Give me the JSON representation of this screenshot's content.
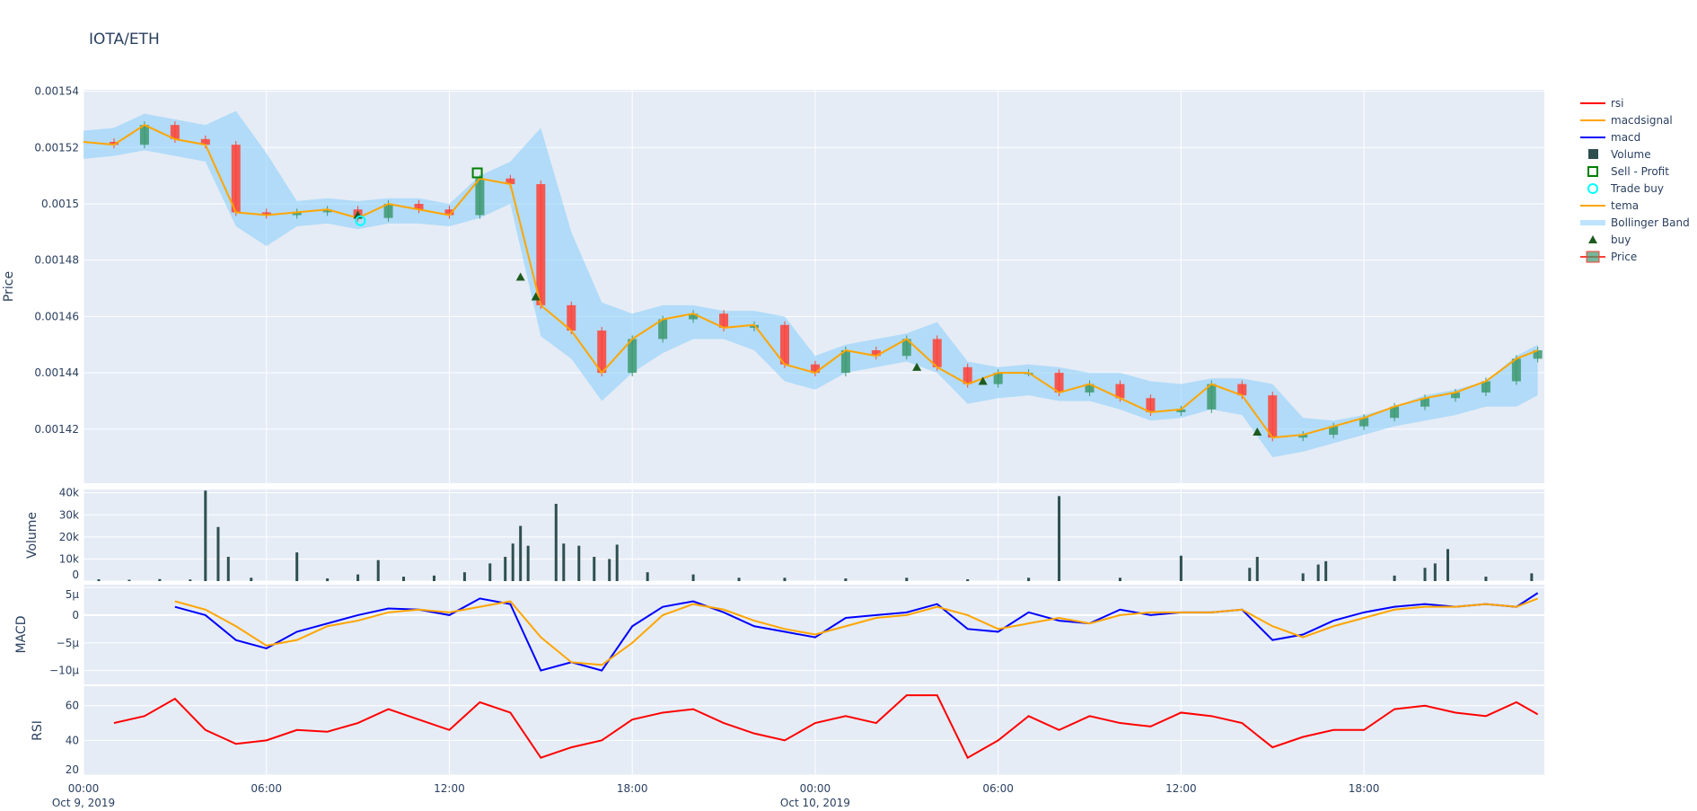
{
  "title": "IOTA/ETH",
  "chart_data": [
    {
      "type": "candlestick",
      "panel": "price",
      "ylabel": "Price",
      "ylim": [
        0.0014008,
        0.0015405
      ],
      "yticks": [
        "0.00142",
        "0.00144",
        "0.00146",
        "0.00148",
        "0.0015",
        "0.00152",
        "0.00154"
      ],
      "ytick_values": [
        0.00142,
        0.00144,
        0.00146,
        0.00148,
        0.0015,
        0.00152,
        0.00154
      ],
      "grid": true,
      "time": [
        "2019-10-09 00:00",
        "2019-10-09 01:00",
        "2019-10-09 02:00",
        "2019-10-09 03:00",
        "2019-10-09 04:00",
        "2019-10-09 05:00",
        "2019-10-09 06:00",
        "2019-10-09 07:00",
        "2019-10-09 08:00",
        "2019-10-09 09:00",
        "2019-10-09 10:00",
        "2019-10-09 11:00",
        "2019-10-09 12:00",
        "2019-10-09 13:00",
        "2019-10-09 14:00",
        "2019-10-09 15:00",
        "2019-10-09 16:00",
        "2019-10-09 17:00",
        "2019-10-09 18:00",
        "2019-10-09 19:00",
        "2019-10-09 20:00",
        "2019-10-09 21:00",
        "2019-10-09 22:00",
        "2019-10-09 23:00",
        "2019-10-10 00:00",
        "2019-10-10 01:00",
        "2019-10-10 02:00",
        "2019-10-10 03:00",
        "2019-10-10 04:00",
        "2019-10-10 05:00",
        "2019-10-10 06:00",
        "2019-10-10 07:00",
        "2019-10-10 08:00",
        "2019-10-10 09:00",
        "2019-10-10 10:00",
        "2019-10-10 11:00",
        "2019-10-10 12:00",
        "2019-10-10 13:00",
        "2019-10-10 14:00",
        "2019-10-10 15:00",
        "2019-10-10 16:00",
        "2019-10-10 17:00",
        "2019-10-10 18:00",
        "2019-10-10 19:00",
        "2019-10-10 20:00",
        "2019-10-10 21:00",
        "2019-10-10 22:00",
        "2019-10-10 23:00",
        "2019-10-10 23:42"
      ],
      "close": [
        0.001522,
        0.001521,
        0.001528,
        0.001523,
        0.001521,
        0.001497,
        0.001496,
        0.001497,
        0.001498,
        0.001495,
        0.0015,
        0.001498,
        0.001496,
        0.001509,
        0.001507,
        0.001464,
        0.001455,
        0.00144,
        0.001452,
        0.001459,
        0.001461,
        0.001456,
        0.001457,
        0.001443,
        0.00144,
        0.001448,
        0.001446,
        0.001452,
        0.001442,
        0.001436,
        0.00144,
        0.00144,
        0.001433,
        0.001436,
        0.001431,
        0.001426,
        0.001427,
        0.001436,
        0.001432,
        0.001417,
        0.001418,
        0.001421,
        0.001424,
        0.001428,
        0.001431,
        0.001433,
        0.001437,
        0.001445,
        0.001448
      ],
      "tema": [
        0.001522,
        0.001521,
        0.001528,
        0.001523,
        0.001521,
        0.001497,
        0.001496,
        0.001497,
        0.001498,
        0.001495,
        0.0015,
        0.001498,
        0.001496,
        0.001509,
        0.001507,
        0.001464,
        0.001455,
        0.00144,
        0.001452,
        0.001459,
        0.001461,
        0.001456,
        0.001457,
        0.001443,
        0.00144,
        0.001448,
        0.001446,
        0.001452,
        0.001442,
        0.001436,
        0.00144,
        0.00144,
        0.001433,
        0.001436,
        0.001431,
        0.001426,
        0.001427,
        0.001436,
        0.001432,
        0.001417,
        0.001418,
        0.001421,
        0.001424,
        0.001428,
        0.001431,
        0.001433,
        0.001437,
        0.001445,
        0.001448
      ],
      "bb_upper": [
        0.001526,
        0.001527,
        0.001532,
        0.00153,
        0.001528,
        0.001533,
        0.001518,
        0.001501,
        0.001502,
        0.001501,
        0.001502,
        0.001502,
        0.0015,
        0.00151,
        0.001515,
        0.001527,
        0.00149,
        0.001465,
        0.001461,
        0.001464,
        0.001464,
        0.001462,
        0.001462,
        0.00146,
        0.001446,
        0.00145,
        0.001452,
        0.001454,
        0.001458,
        0.001444,
        0.001442,
        0.001443,
        0.001442,
        0.00144,
        0.00144,
        0.001437,
        0.001436,
        0.001438,
        0.001438,
        0.001436,
        0.001424,
        0.001423,
        0.001425,
        0.001428,
        0.001432,
        0.001434,
        0.001437,
        0.001446,
        0.00145
      ],
      "bb_lower": [
        0.001516,
        0.001517,
        0.001519,
        0.001517,
        0.001515,
        0.001492,
        0.001485,
        0.001492,
        0.001493,
        0.001491,
        0.001493,
        0.001493,
        0.001492,
        0.001495,
        0.0015,
        0.001453,
        0.001445,
        0.00143,
        0.00144,
        0.001447,
        0.001452,
        0.001452,
        0.001448,
        0.001437,
        0.001434,
        0.00144,
        0.001442,
        0.001444,
        0.00144,
        0.001429,
        0.001431,
        0.001432,
        0.00143,
        0.00143,
        0.001427,
        0.001423,
        0.001424,
        0.001427,
        0.001425,
        0.00141,
        0.001412,
        0.001415,
        0.001418,
        0.001421,
        0.001423,
        0.001425,
        0.001428,
        0.001428,
        0.001432
      ],
      "buy": [
        [
          "2019-10-09 09:00",
          0.001496
        ],
        [
          "2019-10-09 14:20",
          0.001474
        ],
        [
          "2019-10-09 14:50",
          0.001467
        ],
        [
          "2019-10-10 03:20",
          0.001442
        ],
        [
          "2019-10-10 05:30",
          0.001437
        ],
        [
          "2019-10-10 14:30",
          0.001419
        ]
      ],
      "trade_buy": [
        [
          "2019-10-09 09:05",
          0.001494
        ]
      ],
      "sell_profit": [
        [
          "2019-10-09 12:55",
          0.001511
        ]
      ]
    },
    {
      "type": "bar",
      "panel": "volume",
      "ylabel": "Volume",
      "ylim": [
        0,
        41500
      ],
      "yticks": [
        "0",
        "10k",
        "20k",
        "30k",
        "40k"
      ],
      "ytick_values": [
        0,
        10000,
        20000,
        30000,
        40000
      ],
      "points": [
        [
          "2019-10-09 00:30",
          800
        ],
        [
          "2019-10-09 01:30",
          600
        ],
        [
          "2019-10-09 02:30",
          900
        ],
        [
          "2019-10-09 03:30",
          700
        ],
        [
          "2019-10-09 04:00",
          41000
        ],
        [
          "2019-10-09 04:25",
          24500
        ],
        [
          "2019-10-09 04:45",
          11000
        ],
        [
          "2019-10-09 05:30",
          1500
        ],
        [
          "2019-10-09 07:00",
          13000
        ],
        [
          "2019-10-09 08:00",
          1200
        ],
        [
          "2019-10-09 09:00",
          3000
        ],
        [
          "2019-10-09 09:40",
          9500
        ],
        [
          "2019-10-09 10:30",
          2000
        ],
        [
          "2019-10-09 11:30",
          2500
        ],
        [
          "2019-10-09 12:30",
          4000
        ],
        [
          "2019-10-09 13:20",
          8000
        ],
        [
          "2019-10-09 13:50",
          11000
        ],
        [
          "2019-10-09 14:05",
          17000
        ],
        [
          "2019-10-09 14:20",
          25000
        ],
        [
          "2019-10-09 14:35",
          16000
        ],
        [
          "2019-10-09 15:30",
          35000
        ],
        [
          "2019-10-09 15:45",
          17000
        ],
        [
          "2019-10-09 16:15",
          16000
        ],
        [
          "2019-10-09 16:45",
          11000
        ],
        [
          "2019-10-09 17:15",
          10000
        ],
        [
          "2019-10-09 17:30",
          16500
        ],
        [
          "2019-10-09 18:30",
          4000
        ],
        [
          "2019-10-09 20:00",
          3000
        ],
        [
          "2019-10-09 21:30",
          1500
        ],
        [
          "2019-10-09 23:00",
          1500
        ],
        [
          "2019-10-10 01:00",
          1200
        ],
        [
          "2019-10-10 03:00",
          1500
        ],
        [
          "2019-10-10 05:00",
          800
        ],
        [
          "2019-10-10 07:00",
          1500
        ],
        [
          "2019-10-10 08:00",
          38500
        ],
        [
          "2019-10-10 10:00",
          1500
        ],
        [
          "2019-10-10 12:00",
          11500
        ],
        [
          "2019-10-10 14:15",
          6000
        ],
        [
          "2019-10-10 14:30",
          11000
        ],
        [
          "2019-10-10 16:00",
          3500
        ],
        [
          "2019-10-10 16:30",
          7500
        ],
        [
          "2019-10-10 16:45",
          9000
        ],
        [
          "2019-10-10 19:00",
          2500
        ],
        [
          "2019-10-10 20:00",
          6000
        ],
        [
          "2019-10-10 20:20",
          8000
        ],
        [
          "2019-10-10 20:45",
          14500
        ],
        [
          "2019-10-10 22:00",
          2000
        ],
        [
          "2019-10-10 23:30",
          3500
        ]
      ],
      "color": "#2f4f4f"
    },
    {
      "type": "line",
      "panel": "macd",
      "ylabel": "MACD",
      "ylim": [
        -1.25e-05,
        5.5e-06
      ],
      "yticks": [
        "5µ",
        "0",
        "−5µ",
        "−10µ"
      ],
      "ytick_values": [
        5e-06,
        0,
        -5e-06,
        -1e-05
      ],
      "series": [
        {
          "name": "macd",
          "color": "#0000ff",
          "values": [
            null,
            null,
            null,
            1.5e-06,
            0,
            -4.5e-06,
            -6e-06,
            -3e-06,
            -1.5e-06,
            0,
            1.2e-06,
            1e-06,
            0,
            3e-06,
            2e-06,
            -1e-05,
            -8.5e-06,
            -1e-05,
            -2e-06,
            1.5e-06,
            2.5e-06,
            5e-07,
            -2e-06,
            -3e-06,
            -4e-06,
            -5e-07,
            0,
            5e-07,
            2e-06,
            -2.5e-06,
            -3e-06,
            5e-07,
            -1e-06,
            -1.5e-06,
            1e-06,
            0,
            5e-07,
            5e-07,
            1e-06,
            -4.5e-06,
            -3.5e-06,
            -1e-06,
            5e-07,
            1.5e-06,
            2e-06,
            1.5e-06,
            2e-06,
            1.5e-06,
            4e-06
          ]
        },
        {
          "name": "macdsignal",
          "color": "#ffa500",
          "values": [
            null,
            null,
            null,
            2.5e-06,
            1e-06,
            -2e-06,
            -5.5e-06,
            -4.5e-06,
            -2e-06,
            -1e-06,
            5e-07,
            1e-06,
            5e-07,
            1.5e-06,
            2.5e-06,
            -4e-06,
            -8.5e-06,
            -9e-06,
            -5e-06,
            0,
            2e-06,
            1e-06,
            -1e-06,
            -2.5e-06,
            -3.5e-06,
            -2e-06,
            -5e-07,
            0,
            1.5e-06,
            0,
            -2.5e-06,
            -1.5e-06,
            -5e-07,
            -1.5e-06,
            0,
            5e-07,
            5e-07,
            5e-07,
            1e-06,
            -2e-06,
            -4e-06,
            -2e-06,
            -5e-07,
            1e-06,
            1.5e-06,
            1.5e-06,
            2e-06,
            1.5e-06,
            3e-06
          ]
        }
      ]
    },
    {
      "type": "line",
      "panel": "rsi",
      "ylabel": "RSI",
      "ylim": [
        20,
        71.25
      ],
      "yticks": [
        "20",
        "40",
        "60"
      ],
      "ytick_values": [
        20,
        40,
        60
      ],
      "series": [
        {
          "name": "rsi",
          "color": "#ff0000",
          "values": [
            null,
            50,
            54,
            64,
            46,
            38,
            40,
            46,
            45,
            50,
            58,
            52,
            46,
            62,
            56,
            30,
            36,
            40,
            52,
            56,
            58,
            50,
            44,
            40,
            50,
            54,
            50,
            66,
            66,
            30,
            40,
            54,
            46,
            54,
            50,
            48,
            56,
            54,
            50,
            36,
            42,
            46,
            46,
            58,
            60,
            56,
            54,
            62,
            55
          ]
        }
      ]
    }
  ],
  "xaxis": {
    "range": [
      "2019-10-09 00:00",
      "2019-10-10 23:55"
    ],
    "ticks": [
      {
        "time": "2019-10-09 00:00",
        "label": "00:00",
        "sub": "Oct 9, 2019"
      },
      {
        "time": "2019-10-09 06:00",
        "label": "06:00",
        "sub": ""
      },
      {
        "time": "2019-10-09 12:00",
        "label": "12:00",
        "sub": ""
      },
      {
        "time": "2019-10-09 18:00",
        "label": "18:00",
        "sub": ""
      },
      {
        "time": "2019-10-10 00:00",
        "label": "00:00",
        "sub": "Oct 10, 2019"
      },
      {
        "time": "2019-10-10 06:00",
        "label": "06:00",
        "sub": ""
      },
      {
        "time": "2019-10-10 12:00",
        "label": "12:00",
        "sub": ""
      },
      {
        "time": "2019-10-10 18:00",
        "label": "18:00",
        "sub": ""
      }
    ]
  },
  "legend": {
    "position": "right",
    "items": [
      {
        "label": "rsi",
        "kind": "line",
        "color": "#ff0000"
      },
      {
        "label": "macdsignal",
        "kind": "line",
        "color": "#ffa500"
      },
      {
        "label": "macd",
        "kind": "line",
        "color": "#0000ff"
      },
      {
        "label": "Volume",
        "kind": "square",
        "color": "#2f4f4f"
      },
      {
        "label": "Sell - Profit",
        "kind": "square-open",
        "color": "#008000"
      },
      {
        "label": "Trade buy",
        "kind": "circle-open",
        "color": "#00ffff"
      },
      {
        "label": "tema",
        "kind": "line",
        "color": "#ffa500"
      },
      {
        "label": "Bollinger Band",
        "kind": "band",
        "color": "#87cefa"
      },
      {
        "label": "buy",
        "kind": "triangle",
        "color": "#1e5a1e"
      },
      {
        "label": "Price",
        "kind": "candle",
        "color": "#3d9970"
      }
    ]
  },
  "colors": {
    "increasing": "#3d9970",
    "decreasing": "#ff4136",
    "plot_bg": "#e5ecf6",
    "band": "#87cefa"
  }
}
